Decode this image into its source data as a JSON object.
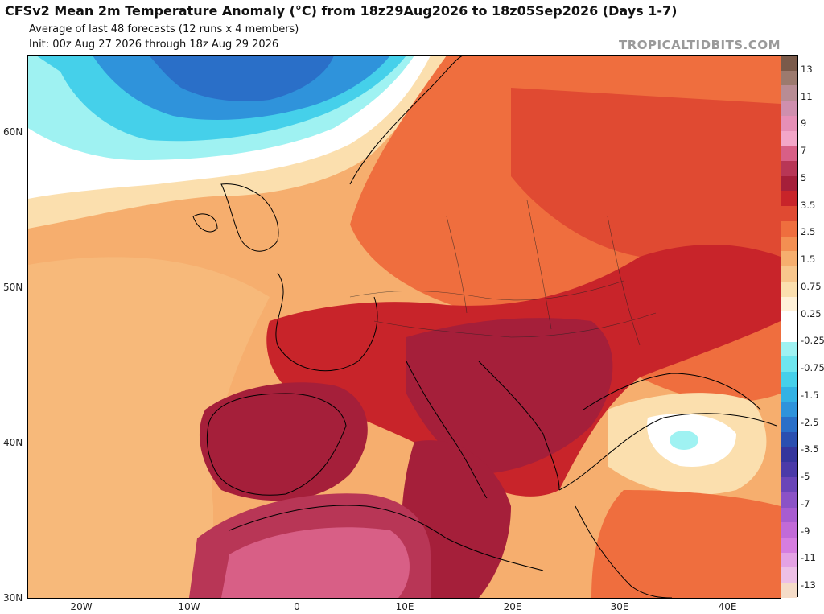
{
  "header": {
    "title": "CFSv2 Mean 2m Temperature Anomaly (°C) from 18z29Aug2026 to 18z05Sep2026 (Days 1-7)",
    "subtitle_1": "Average of last 48 forecasts (12 runs x 4 members)",
    "subtitle_2": "Init: 00z Aug 27 2026 through 18z Aug 29 2026",
    "brand": "TROPICALTIDBITS.COM"
  },
  "map": {
    "latitude_labels": [
      "60N",
      "50N",
      "40N",
      "30N"
    ],
    "longitude_labels": [
      "20W",
      "10W",
      "0",
      "10E",
      "20E",
      "30E",
      "40E"
    ]
  },
  "colorbar": {
    "labels": [
      "13",
      "11",
      "9",
      "7",
      "5",
      "3.5",
      "2.5",
      "1.5",
      "0.75",
      "0.25",
      "-0.25",
      "-0.75",
      "-1.5",
      "-2.5",
      "-3.5",
      "-5",
      "-7",
      "-9",
      "-11",
      "-13"
    ],
    "colors": [
      "#7a5a4a",
      "#9c7a6e",
      "#b88c94",
      "#cf8fae",
      "#e68fb6",
      "#f3a6c8",
      "#d85f86",
      "#b83656",
      "#a51f3a",
      "#c8242a",
      "#e04a32",
      "#ef6e3e",
      "#f38f52",
      "#f6ae6e",
      "#f8c68c",
      "#fbdfae",
      "#fff1d8",
      "#ffffff",
      "#ffffff",
      "#9ff2f2",
      "#6ee6ee",
      "#45d0ea",
      "#33b2e4",
      "#2f93db",
      "#2a6fc8",
      "#2b4fb0",
      "#35359c",
      "#4b3aa8",
      "#6a45b8",
      "#8b52c6",
      "#a85cd0",
      "#c26ad8",
      "#d67de0",
      "#e4a2e4",
      "#edc0e6",
      "#f5dcc8"
    ]
  }
}
